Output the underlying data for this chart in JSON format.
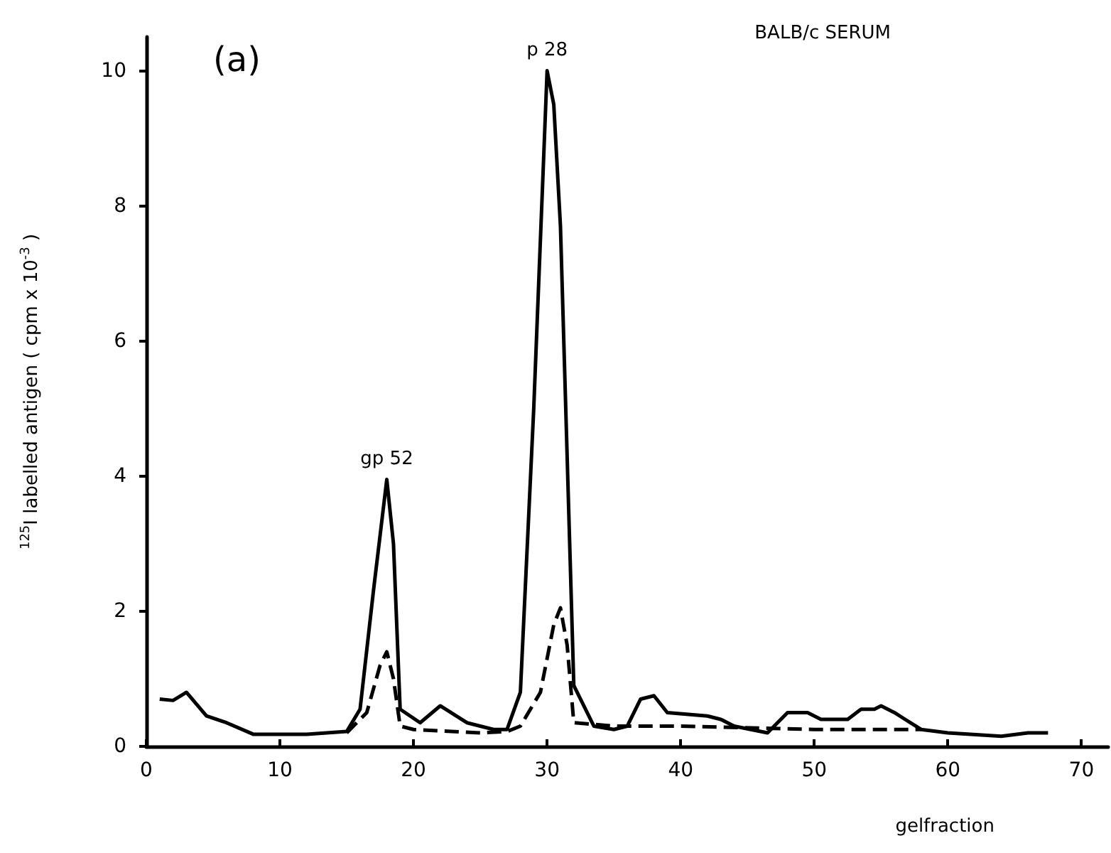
{
  "chart_data": {
    "type": "line",
    "title": "BALB/c SERUM",
    "xlabel": "gelfraction",
    "ylabel": "$^{125}$I labelled antigen ( cpm x 10$^{-3}$ )",
    "annotations": [
      "(a)",
      {
        "text": "gp 52",
        "x": 18,
        "y": 3.95
      },
      {
        "text": "p 28",
        "x": 30,
        "y": 10
      }
    ],
    "xlim": [
      0,
      72
    ],
    "xticks": [
      0,
      10,
      20,
      30,
      40,
      50,
      60,
      70
    ],
    "ylim": [
      0,
      10.5
    ],
    "yticks": [
      0,
      2,
      4,
      6,
      8,
      10
    ],
    "grid": false,
    "marker": "none",
    "series": [
      {
        "color": "#000000",
        "line_style": "solid",
        "x": [
          1,
          2,
          3,
          4.5,
          6,
          8,
          12,
          15,
          16,
          17,
          18,
          18.5,
          19,
          20.5,
          22,
          24,
          26,
          27,
          28,
          29,
          30,
          30.5,
          31,
          32,
          33.5,
          35,
          36,
          37,
          38,
          39,
          42,
          43,
          44,
          46.5,
          48,
          49.5,
          50.5,
          52.5,
          53.5,
          54.5,
          55,
          56,
          58,
          60,
          64,
          66,
          67.5
        ],
        "values": [
          0.7,
          0.68,
          0.8,
          0.45,
          0.35,
          0.18,
          0.18,
          0.22,
          0.55,
          2.3,
          3.95,
          3.0,
          0.55,
          0.35,
          0.6,
          0.35,
          0.25,
          0.25,
          0.8,
          5,
          10,
          9.5,
          7.7,
          0.9,
          0.3,
          0.25,
          0.3,
          0.7,
          0.75,
          0.5,
          0.45,
          0.4,
          0.3,
          0.2,
          0.5,
          0.5,
          0.4,
          0.4,
          0.55,
          0.55,
          0.6,
          0.5,
          0.25,
          0.2,
          0.15,
          0.2,
          0.2
        ]
      },
      {
        "color": "#000000",
        "line_style": "dashed",
        "x": [
          15,
          16.5,
          17.5,
          18,
          18.5,
          19,
          20,
          25,
          27,
          28,
          29.5,
          30.5,
          31,
          31.5,
          32,
          35,
          40,
          50,
          58
        ],
        "values": [
          0.2,
          0.5,
          1.2,
          1.4,
          1.0,
          0.3,
          0.25,
          0.2,
          0.22,
          0.3,
          0.8,
          1.8,
          2.05,
          1.5,
          0.35,
          0.3,
          0.3,
          0.25,
          0.25
        ]
      }
    ]
  }
}
